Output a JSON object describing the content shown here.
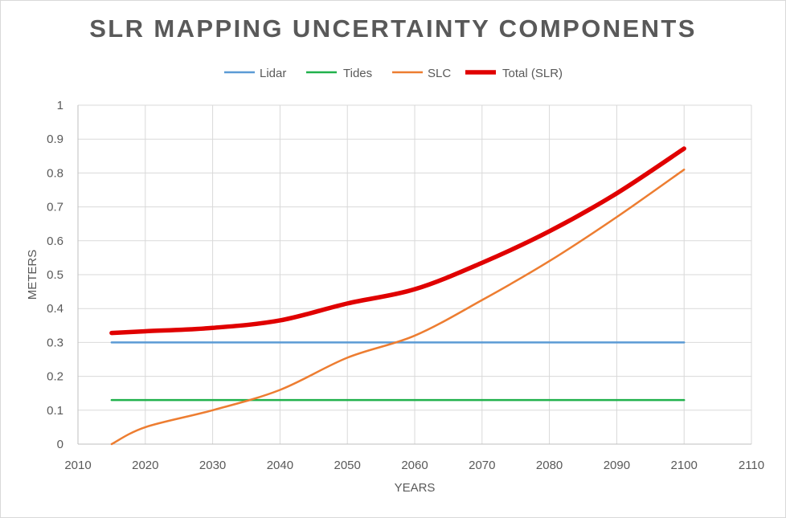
{
  "chart_data": {
    "type": "line",
    "title": "SLR MAPPING UNCERTAINTY COMPONENTS",
    "xlabel": "YEARS",
    "ylabel": "METERS",
    "xlim": [
      2010,
      2110
    ],
    "ylim": [
      0,
      1
    ],
    "x_ticks": [
      "2010",
      "2020",
      "2030",
      "2040",
      "2050",
      "2060",
      "2070",
      "2080",
      "2090",
      "2100",
      "2110"
    ],
    "y_ticks": [
      "0",
      "0.1",
      "0.2",
      "0.3",
      "0.4",
      "0.5",
      "0.6",
      "0.7",
      "0.8",
      "0.9",
      "1"
    ],
    "grid": true,
    "legend_position": "top",
    "series": [
      {
        "name": "Lidar",
        "color": "#5b9bd5",
        "x": [
          2015,
          2100
        ],
        "values": [
          0.3,
          0.3
        ]
      },
      {
        "name": "Tides",
        "color": "#21b14c",
        "x": [
          2015,
          2100
        ],
        "values": [
          0.13,
          0.13
        ]
      },
      {
        "name": "SLC",
        "color": "#ed7d31",
        "x": [
          2015,
          2020,
          2030,
          2040,
          2050,
          2060,
          2070,
          2080,
          2090,
          2100
        ],
        "values": [
          0.0,
          0.05,
          0.1,
          0.16,
          0.255,
          0.32,
          0.425,
          0.54,
          0.67,
          0.81
        ]
      },
      {
        "name": "Total (SLR)",
        "color": "#e00000",
        "x": [
          2015,
          2020,
          2030,
          2040,
          2050,
          2060,
          2070,
          2080,
          2090,
          2100
        ],
        "values": [
          0.328,
          0.333,
          0.343,
          0.365,
          0.415,
          0.457,
          0.535,
          0.628,
          0.74,
          0.872
        ]
      }
    ]
  }
}
